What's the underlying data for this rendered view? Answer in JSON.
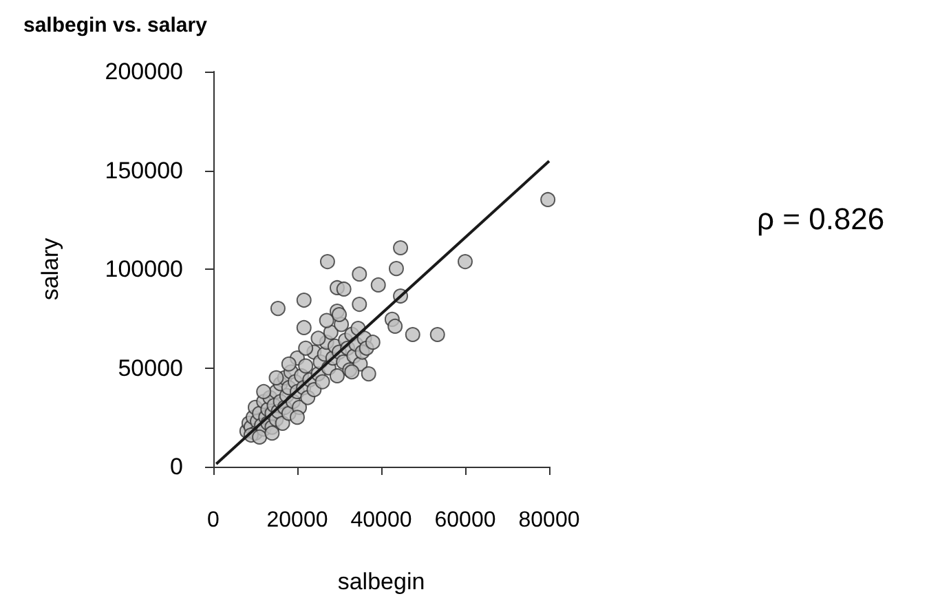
{
  "chart_data": {
    "type": "scatter",
    "title": "salbegin vs. salary",
    "xlabel": "salbegin",
    "ylabel": "salary",
    "annotations": [
      "ρ = 0.826"
    ],
    "marker": "circle",
    "xlim": [
      0,
      80000
    ],
    "xticks": [
      0,
      20000,
      40000,
      60000,
      80000
    ],
    "ylim": [
      0,
      200000
    ],
    "yticks": [
      0,
      50000,
      100000,
      150000,
      200000
    ],
    "series": [
      {
        "type": "scatter",
        "color": "#bebebe",
        "x": [
          79700,
          60000,
          44600,
          27200,
          43600,
          34800,
          39300,
          29500,
          31100,
          44600,
          21600,
          15400,
          34800,
          29500,
          42600,
          43300,
          47500,
          53400,
          21600,
          8000,
          8500,
          9000,
          9500,
          10000,
          10000,
          10500,
          11000,
          11500,
          12000,
          12000,
          12500,
          13000,
          13000,
          13500,
          14000,
          14000,
          14500,
          15000,
          15000,
          15500,
          16000,
          16000,
          16500,
          17000,
          17000,
          17500,
          18000,
          18000,
          18500,
          19000,
          19500,
          20000,
          20000,
          20500,
          21000,
          21500,
          22000,
          22500,
          23000,
          24000,
          24000,
          25000,
          25500,
          26000,
          26500,
          27000,
          27500,
          28000,
          28500,
          29000,
          29500,
          30000,
          30500,
          31000,
          31500,
          32000,
          32500,
          33000,
          33500,
          34000,
          34500,
          35000,
          35500,
          36000,
          36500,
          37000,
          38000,
          15000,
          22000,
          27000,
          30000,
          12000,
          18000,
          25000,
          33000,
          20000,
          9000,
          11000,
          14000
        ],
        "values": [
          135200,
          103800,
          110800,
          103800,
          100300,
          97500,
          92000,
          90600,
          89900,
          86400,
          84300,
          80100,
          82200,
          78700,
          74600,
          71100,
          66900,
          66900,
          70400,
          18000,
          22000,
          20000,
          25000,
          17000,
          30000,
          23000,
          27000,
          21000,
          19000,
          33000,
          25000,
          29000,
          22000,
          35000,
          27000,
          20000,
          31000,
          24000,
          38000,
          28000,
          33000,
          42000,
          22000,
          30000,
          45000,
          36000,
          27000,
          40000,
          48000,
          33000,
          43000,
          38000,
          55000,
          30000,
          46000,
          40000,
          51000,
          35000,
          44000,
          58000,
          39000,
          47000,
          53000,
          43000,
          57000,
          63000,
          50000,
          68000,
          55000,
          61000,
          46000,
          58000,
          72000,
          53000,
          64000,
          60000,
          49000,
          67000,
          56000,
          62000,
          70000,
          52000,
          58000,
          65000,
          60000,
          47000,
          63000,
          45000,
          60000,
          74000,
          77000,
          38000,
          52000,
          65000,
          48000,
          25000,
          16000,
          15000,
          17000
        ]
      },
      {
        "type": "line",
        "color": "#1a1a1a",
        "marker": "none",
        "x": [
          700,
          80000
        ],
        "values": [
          1400,
          154700
        ]
      }
    ]
  }
}
